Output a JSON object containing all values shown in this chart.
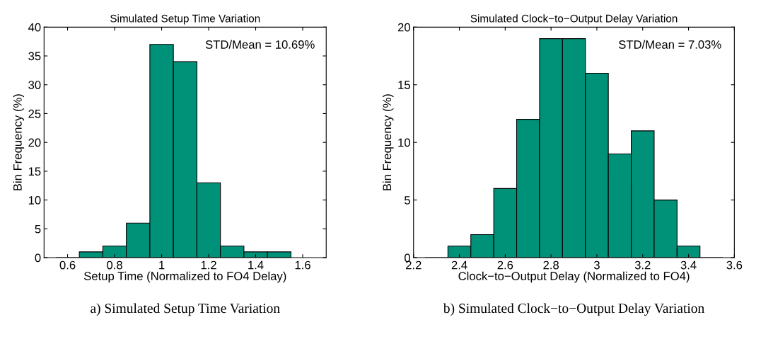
{
  "chart_data": [
    {
      "type": "histogram",
      "title": "Simulated Setup Time Variation",
      "xlabel": "Setup Time (Normalized to FO4 Delay)",
      "ylabel": "Bin Frequency (%)",
      "bins": [
        0.55,
        0.65,
        0.75,
        0.85,
        0.95,
        1.05,
        1.15,
        1.25,
        1.35,
        1.45,
        1.55
      ],
      "values": [
        0,
        1,
        2,
        6,
        37,
        34,
        13,
        2,
        1,
        1
      ],
      "color": "#009179",
      "xlim": [
        0.5,
        1.7
      ],
      "xticks": [
        0.6,
        0.8,
        1,
        1.2,
        1.4,
        1.6
      ],
      "ylim": [
        0,
        40
      ],
      "yticks": [
        0,
        5,
        10,
        15,
        20,
        25,
        30,
        35,
        40
      ],
      "annotations": [
        "STD/Mean = 10.69%",
        "a) Simulated Setup Time Variation"
      ]
    },
    {
      "type": "histogram",
      "title": "Simulated Clock−to−Output Delay Variation",
      "xlabel": "Clock−to−Output Delay (Normalized to FO4)",
      "ylabel": "Bin Frequency (%)",
      "bins": [
        2.25,
        2.35,
        2.45,
        2.55,
        2.65,
        2.75,
        2.85,
        2.95,
        3.05,
        3.15,
        3.25,
        3.35,
        3.45,
        3.55
      ],
      "values": [
        0,
        1,
        2,
        6,
        12,
        19,
        19,
        16,
        9,
        11,
        5,
        1,
        0
      ],
      "color": "#009179",
      "xlim": [
        2.2,
        3.6
      ],
      "xticks": [
        2.2,
        2.4,
        2.6,
        2.8,
        3,
        3.2,
        3.4,
        3.6
      ],
      "ylim": [
        0,
        20
      ],
      "yticks": [
        0,
        5,
        10,
        15,
        20
      ],
      "annotations": [
        "STD/Mean = 7.03%",
        "b) Simulated Clock−to−Output Delay Variation"
      ]
    }
  ]
}
